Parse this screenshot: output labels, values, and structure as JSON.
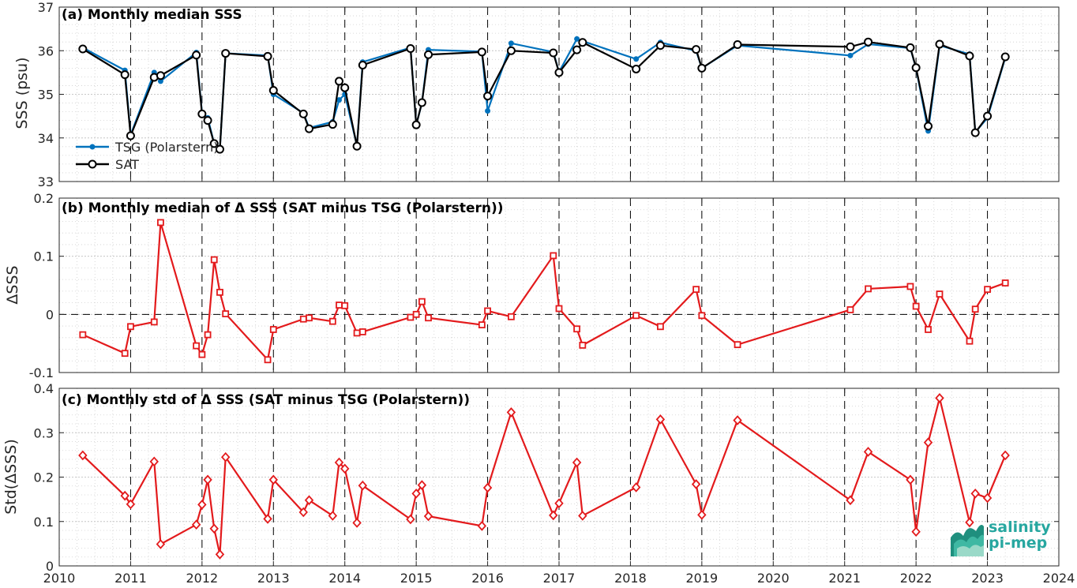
{
  "x_ticks": [
    "2010",
    "2011",
    "2012",
    "2013",
    "2014",
    "2015",
    "2016",
    "2017",
    "2018",
    "2019",
    "2020",
    "2021",
    "2022",
    "2023",
    "2024"
  ],
  "colors": {
    "tsg": "#0072bd",
    "sat": "#000000",
    "diff": "#e31a1c",
    "grid": "#b0b0b0"
  },
  "logo": {
    "line1": "salinity",
    "line2": "pi-mep"
  },
  "chart_data": [
    {
      "type": "line",
      "title": "(a) Monthly median SSS",
      "ylabel": "SSS (psu)",
      "ylim": [
        33,
        37
      ],
      "xlim": [
        2010,
        2024
      ],
      "y_ticks": [
        "33",
        "34",
        "35",
        "36",
        "37"
      ],
      "grid": true,
      "legend_position": "bottom-left",
      "x": [
        2010.33,
        2010.92,
        2011.0,
        2011.33,
        2011.42,
        2011.92,
        2012.0,
        2012.08,
        2012.17,
        2012.25,
        2012.33,
        2012.92,
        2013.0,
        2013.42,
        2013.5,
        2013.83,
        2013.92,
        2014.0,
        2014.17,
        2014.25,
        2014.92,
        2015.0,
        2015.08,
        2015.17,
        2015.92,
        2016.0,
        2016.33,
        2016.92,
        2017.0,
        2017.25,
        2017.33,
        2018.08,
        2018.42,
        2018.92,
        2019.0,
        2019.5,
        2021.08,
        2021.33,
        2021.92,
        2022.0,
        2022.17,
        2022.33,
        2022.75,
        2022.83,
        2023.0,
        2023.25
      ],
      "series": [
        {
          "name": "TSG (Polarstern)",
          "marker": "filled-circle",
          "values": [
            36.07,
            35.55,
            34.07,
            35.5,
            35.3,
            35.96,
            34.58,
            34.46,
            33.87,
            33.74,
            35.94,
            35.89,
            35.0,
            34.57,
            34.23,
            34.37,
            34.87,
            35.0,
            33.82,
            35.74,
            36.07,
            34.3,
            34.8,
            36.02,
            35.98,
            34.62,
            36.17,
            35.97,
            35.51,
            36.27,
            36.22,
            35.81,
            36.19,
            36.0,
            35.6,
            36.12,
            35.89,
            36.15,
            36.06,
            35.6,
            34.16,
            36.12,
            35.92,
            34.13,
            34.46,
            35.84
          ]
        },
        {
          "name": "SAT",
          "marker": "open-circle",
          "values": [
            36.04,
            35.45,
            34.05,
            35.39,
            35.43,
            35.9,
            34.55,
            34.4,
            33.87,
            33.74,
            35.94,
            35.87,
            35.09,
            34.55,
            34.21,
            34.31,
            35.3,
            35.15,
            33.81,
            35.67,
            36.05,
            34.3,
            34.81,
            35.91,
            35.97,
            34.96,
            36.0,
            35.95,
            35.5,
            36.02,
            36.19,
            35.58,
            36.12,
            36.03,
            35.6,
            36.14,
            36.09,
            36.2,
            36.07,
            35.61,
            34.27,
            36.15,
            35.88,
            34.12,
            34.5,
            35.86
          ]
        }
      ]
    },
    {
      "type": "line",
      "title": "(b) Monthly median of Δ SSS (SAT minus TSG (Polarstern))",
      "ylabel": "ΔSSS",
      "ylim": [
        -0.1,
        0.2
      ],
      "xlim": [
        2010,
        2024
      ],
      "y_ticks": [
        "-0.1",
        "0",
        "0.1",
        "0.2"
      ],
      "grid": true,
      "reference_line_y": 0,
      "x": [
        2010.33,
        2010.92,
        2011.0,
        2011.33,
        2011.42,
        2011.92,
        2012.0,
        2012.08,
        2012.17,
        2012.25,
        2012.33,
        2012.92,
        2013.0,
        2013.42,
        2013.5,
        2013.83,
        2013.92,
        2014.0,
        2014.17,
        2014.25,
        2014.92,
        2015.0,
        2015.08,
        2015.17,
        2015.92,
        2016.0,
        2016.33,
        2016.92,
        2017.0,
        2017.25,
        2017.33,
        2018.08,
        2018.42,
        2018.92,
        2019.0,
        2019.5,
        2021.08,
        2021.33,
        2021.92,
        2022.0,
        2022.17,
        2022.33,
        2022.75,
        2022.83,
        2023.0,
        2023.25
      ],
      "series": [
        {
          "name": "",
          "marker": "open-square",
          "values": [
            -0.035,
            -0.067,
            -0.021,
            -0.013,
            0.158,
            -0.054,
            -0.069,
            -0.035,
            0.094,
            0.038,
            0.001,
            -0.078,
            -0.026,
            -0.008,
            -0.006,
            -0.012,
            0.016,
            0.015,
            -0.032,
            -0.03,
            -0.005,
            0.0,
            0.022,
            -0.006,
            -0.018,
            0.006,
            -0.004,
            0.101,
            0.01,
            -0.025,
            -0.053,
            -0.002,
            -0.021,
            0.043,
            -0.002,
            -0.052,
            0.008,
            0.044,
            0.048,
            0.014,
            -0.026,
            0.035,
            -0.046,
            0.009,
            0.043,
            0.054
          ]
        }
      ]
    },
    {
      "type": "line",
      "title": "(c) Monthly std of Δ SSS (SAT minus TSG (Polarstern))",
      "ylabel": "Std(ΔSSS)",
      "ylim": [
        0,
        0.4
      ],
      "xlim": [
        2010,
        2024
      ],
      "y_ticks": [
        "0",
        "0.1",
        "0.2",
        "0.3",
        "0.4"
      ],
      "grid": true,
      "x": [
        2010.33,
        2010.92,
        2011.0,
        2011.33,
        2011.42,
        2011.92,
        2012.0,
        2012.08,
        2012.17,
        2012.25,
        2012.33,
        2012.92,
        2013.0,
        2013.42,
        2013.5,
        2013.83,
        2013.92,
        2014.0,
        2014.17,
        2014.25,
        2014.92,
        2015.0,
        2015.08,
        2015.17,
        2015.92,
        2016.0,
        2016.33,
        2016.92,
        2017.0,
        2017.25,
        2017.33,
        2018.08,
        2018.42,
        2018.92,
        2019.0,
        2019.5,
        2021.08,
        2021.33,
        2021.92,
        2022.0,
        2022.17,
        2022.33,
        2022.75,
        2022.83,
        2023.0,
        2023.25
      ],
      "series": [
        {
          "name": "",
          "marker": "open-diamond",
          "values": [
            0.249,
            0.158,
            0.139,
            0.235,
            0.049,
            0.093,
            0.138,
            0.194,
            0.084,
            0.026,
            0.245,
            0.106,
            0.194,
            0.121,
            0.148,
            0.113,
            0.233,
            0.219,
            0.097,
            0.181,
            0.105,
            0.163,
            0.182,
            0.112,
            0.09,
            0.176,
            0.346,
            0.114,
            0.141,
            0.233,
            0.113,
            0.177,
            0.33,
            0.184,
            0.115,
            0.328,
            0.148,
            0.257,
            0.194,
            0.077,
            0.278,
            0.378,
            0.098,
            0.163,
            0.153,
            0.249
          ]
        }
      ]
    }
  ]
}
